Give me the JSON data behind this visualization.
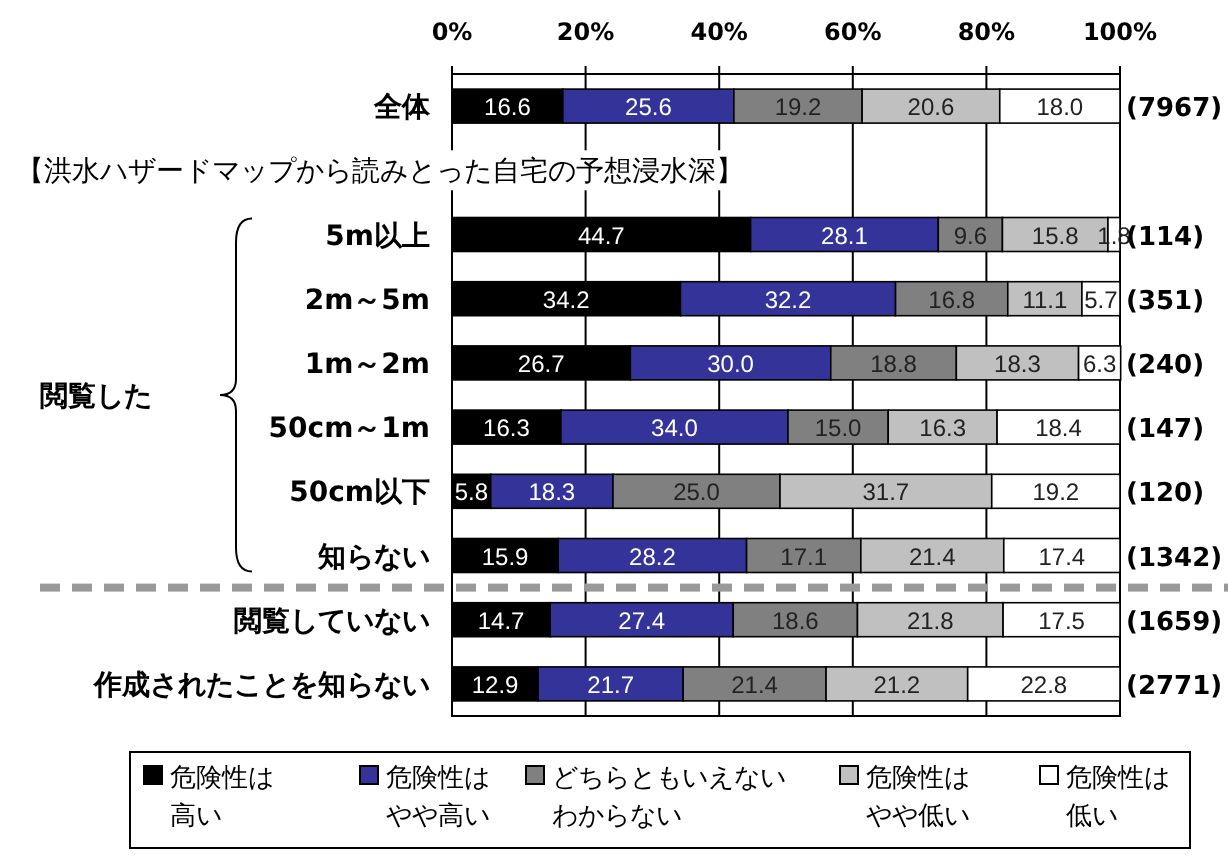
{
  "chart_data": {
    "type": "bar",
    "orientation": "horizontal",
    "stacked": true,
    "categories": [
      "全体",
      null,
      "5m以上",
      "2m～5m",
      "1m～2m",
      "50cm～1m",
      "50cm以下",
      "知らない",
      "閲覧していない",
      "作成されたことを知らない"
    ],
    "xlim": [
      0,
      100
    ],
    "xticks": [
      {
        "value": 0,
        "label": "0%"
      },
      {
        "value": 20,
        "label": "20%"
      },
      {
        "value": 40,
        "label": "40%"
      },
      {
        "value": 60,
        "label": "60%"
      },
      {
        "value": 80,
        "label": "80%"
      },
      {
        "value": 100,
        "label": "100%"
      }
    ],
    "grid": "x",
    "legend": "bottom",
    "series": [
      {
        "name": "危険性は高い",
        "color": "#000000",
        "values": [
          16.6,
          null,
          44.7,
          34.2,
          26.7,
          16.3,
          5.8,
          15.9,
          14.7,
          12.9
        ],
        "value_labels": [
          "16.6",
          null,
          "44.7",
          "34.2",
          "26.7",
          "16.3",
          "5.8",
          "15.9",
          "14.7",
          "12.9"
        ]
      },
      {
        "name": "危険性はやや高い",
        "color": "#333399",
        "values": [
          25.6,
          null,
          28.1,
          32.2,
          30.0,
          34.0,
          18.3,
          28.2,
          27.4,
          21.7
        ],
        "value_labels": [
          "25.6",
          null,
          "28.1",
          "32.2",
          "30.0",
          "34.0",
          "18.3",
          "28.2",
          "27.4",
          "21.7"
        ]
      },
      {
        "name": "どちらともいえないわからない",
        "color": "#808080",
        "values": [
          19.2,
          null,
          9.6,
          16.8,
          18.8,
          15.0,
          25.0,
          17.1,
          18.6,
          21.4
        ],
        "value_labels": [
          "19.2",
          null,
          "9.6",
          "16.8",
          "18.8",
          "15.0",
          "25.0",
          "17.1",
          "18.6",
          "21.4"
        ]
      },
      {
        "name": "危険性はやや低い",
        "color": "#c0c0c0",
        "values": [
          20.6,
          null,
          15.8,
          11.1,
          18.3,
          16.3,
          31.7,
          21.4,
          21.8,
          21.2
        ],
        "value_labels": [
          "20.6",
          null,
          "15.8",
          "11.1",
          "18.3",
          "16.3",
          "31.7",
          "21.4",
          "21.8",
          "21.2"
        ]
      },
      {
        "name": "危険性は低い",
        "color": "#ffffff",
        "values": [
          18.0,
          null,
          1.8,
          5.7,
          6.3,
          18.4,
          19.2,
          17.4,
          17.5,
          22.8
        ],
        "value_labels": [
          "18.0",
          null,
          "1.8",
          "5.7",
          "6.3",
          "18.4",
          "19.2",
          "17.4",
          "17.5",
          "22.8"
        ]
      }
    ],
    "annotations": [
      "【洪水ハザードマップから読みとった自宅の予想浸水深】",
      "閲覧した",
      "(7967)",
      "(114)",
      "(351)",
      "(240)",
      "(147)",
      "(120)",
      "(1342)",
      "(1659)",
      "(2771)"
    ]
  }
}
